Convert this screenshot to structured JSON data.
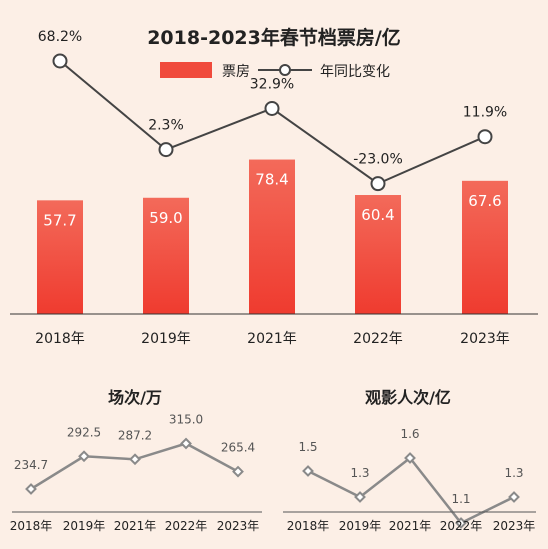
{
  "colors": {
    "background": "#fcefe6",
    "bar": "#f04a3c",
    "bar_light": "#f36a5a",
    "line_main": "#444444",
    "line_small": "#8a8a8a"
  },
  "chart_data": [
    {
      "type": "bar",
      "title": "2018-2023年春节档票房/亿",
      "categories": [
        "2018年",
        "2019年",
        "2021年",
        "2022年",
        "2023年"
      ],
      "ylim": [
        0,
        100
      ],
      "series": [
        {
          "name": "票房",
          "type": "bar",
          "values": [
            57.7,
            59.0,
            78.4,
            60.4,
            67.6
          ]
        },
        {
          "name": "年同比变化",
          "type": "line",
          "values": [
            68.2,
            2.3,
            32.9,
            -23.0,
            11.9
          ],
          "labels": [
            "68.2%",
            "2.3%",
            "32.9%",
            "-23.0%",
            "11.9%"
          ]
        }
      ],
      "legend": "top-center",
      "grid": false
    },
    {
      "type": "line",
      "title": "场次/万",
      "categories": [
        "2018年",
        "2019年",
        "2021年",
        "2022年",
        "2023年"
      ],
      "series": [
        {
          "values": [
            234.7,
            292.5,
            287.2,
            315.0,
            265.4
          ],
          "labels": [
            "234.7",
            "292.5",
            "287.2",
            "315.0",
            "265.4"
          ]
        }
      ],
      "grid": false
    },
    {
      "type": "line",
      "title": "观影人次/亿",
      "categories": [
        "2018年",
        "2019年",
        "2021年",
        "2022年",
        "2023年"
      ],
      "series": [
        {
          "values": [
            1.5,
            1.3,
            1.6,
            1.1,
            1.3
          ],
          "labels": [
            "1.5",
            "1.3",
            "1.6",
            "1.1",
            "1.3"
          ]
        }
      ],
      "grid": false
    }
  ]
}
